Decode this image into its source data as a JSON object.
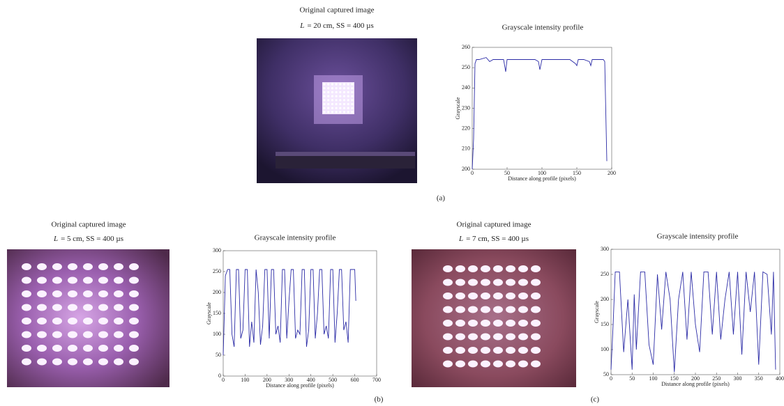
{
  "panels": [
    {
      "image_title": "Original captured image",
      "variable": "L",
      "caption": "= 20 cm, SS = 400 µs",
      "label": "(a)"
    },
    {
      "image_title": "Original captured image",
      "variable": "L",
      "caption": "= 5 cm, SS = 400 µs",
      "label": "(b)"
    },
    {
      "image_title": "Original captured image",
      "variable": "L",
      "caption": "= 7 cm, SS = 400 µs",
      "label": "(c)"
    }
  ],
  "chart_data": [
    {
      "type": "line",
      "title": "Grayscale intensity profile",
      "x_label": "Distance along profile (pixels)",
      "y_label": "Grayscale",
      "color": "#2b2ba6",
      "xlim": [
        0,
        200
      ],
      "xticks": [
        0,
        50,
        100,
        150,
        200
      ],
      "ylim": [
        200,
        260
      ],
      "yticks": [
        200,
        210,
        220,
        230,
        240,
        250,
        260
      ],
      "x": [
        0,
        2,
        4,
        6,
        10,
        20,
        25,
        30,
        40,
        45,
        48,
        50,
        60,
        70,
        80,
        90,
        95,
        97,
        100,
        110,
        120,
        130,
        140,
        148,
        150,
        152,
        160,
        168,
        170,
        172,
        180,
        188,
        190,
        192,
        193
      ],
      "values": [
        200,
        215,
        252,
        254,
        254,
        255,
        253,
        254,
        254,
        254,
        248,
        254,
        254,
        254,
        254,
        254,
        253,
        249,
        254,
        254,
        254,
        254,
        254,
        252,
        251,
        254,
        254,
        253,
        251,
        254,
        254,
        254,
        253,
        220,
        204
      ]
    },
    {
      "type": "line",
      "title": "Grayscale intensity profile",
      "x_label": "Distance along profile (pixels)",
      "y_label": "Grayscale",
      "color": "#2b2ba6",
      "xlim": [
        0,
        700
      ],
      "xticks": [
        0,
        100,
        200,
        300,
        400,
        500,
        600,
        700
      ],
      "ylim": [
        0,
        300
      ],
      "yticks": [
        0,
        50,
        100,
        150,
        200,
        250,
        300
      ],
      "x": [
        0,
        10,
        20,
        30,
        40,
        50,
        60,
        70,
        80,
        90,
        100,
        110,
        120,
        130,
        140,
        150,
        160,
        170,
        180,
        190,
        200,
        210,
        220,
        230,
        240,
        250,
        260,
        270,
        280,
        290,
        300,
        310,
        320,
        330,
        340,
        350,
        360,
        370,
        380,
        390,
        400,
        410,
        420,
        430,
        440,
        450,
        460,
        470,
        480,
        490,
        500,
        510,
        520,
        530,
        540,
        550,
        560,
        570,
        580,
        590,
        600,
        605
      ],
      "values": [
        50,
        240,
        255,
        255,
        100,
        70,
        255,
        255,
        90,
        110,
        255,
        255,
        70,
        130,
        80,
        255,
        200,
        75,
        120,
        255,
        255,
        90,
        255,
        255,
        100,
        120,
        80,
        255,
        255,
        90,
        180,
        255,
        255,
        90,
        110,
        100,
        255,
        255,
        70,
        110,
        255,
        255,
        90,
        150,
        255,
        255,
        100,
        120,
        90,
        255,
        255,
        80,
        150,
        255,
        255,
        110,
        130,
        80,
        255,
        255,
        255,
        180
      ]
    },
    {
      "type": "line",
      "title": "Grayscale intensity profile",
      "x_label": "Distance along profile (pixels)",
      "y_label": "Grayscale",
      "color": "#2b2ba6",
      "xlim": [
        0,
        400
      ],
      "xticks": [
        0,
        50,
        100,
        150,
        200,
        250,
        300,
        350,
        400
      ],
      "ylim": [
        50,
        300
      ],
      "yticks": [
        50,
        100,
        150,
        200,
        250,
        300
      ],
      "x": [
        0,
        5,
        10,
        20,
        30,
        40,
        50,
        55,
        60,
        70,
        80,
        90,
        100,
        110,
        120,
        130,
        140,
        150,
        160,
        170,
        180,
        190,
        200,
        210,
        220,
        230,
        240,
        250,
        260,
        270,
        280,
        290,
        300,
        310,
        320,
        330,
        340,
        350,
        360,
        370,
        380,
        385,
        390
      ],
      "values": [
        60,
        150,
        255,
        255,
        95,
        200,
        60,
        210,
        100,
        255,
        255,
        110,
        70,
        250,
        140,
        255,
        200,
        55,
        200,
        255,
        120,
        255,
        150,
        95,
        255,
        255,
        130,
        255,
        120,
        200,
        255,
        130,
        255,
        90,
        255,
        175,
        255,
        70,
        255,
        250,
        130,
        255,
        60
      ]
    }
  ]
}
